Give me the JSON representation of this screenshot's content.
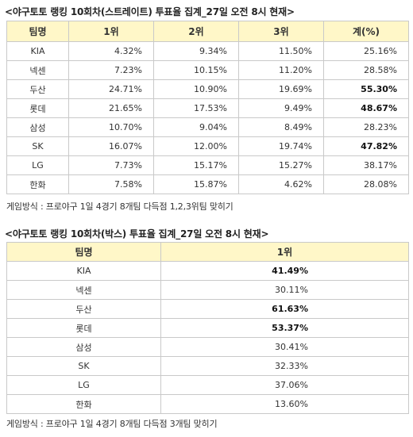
{
  "section1": {
    "title": "<야구토토 랭킹 10회차(스트레이트) 투표율 집계_27일 오전 8시 현재>",
    "headers": [
      "팀명",
      "1위",
      "2위",
      "3위",
      "계(%)"
    ],
    "rows": [
      {
        "team": "KIA",
        "r1": "4.32%",
        "r2": "9.34%",
        "r3": "11.50%",
        "total": "25.16%",
        "bold": false
      },
      {
        "team": "넥센",
        "r1": "7.23%",
        "r2": "10.15%",
        "r3": "11.20%",
        "total": "28.58%",
        "bold": false
      },
      {
        "team": "두산",
        "r1": "24.71%",
        "r2": "10.90%",
        "r3": "19.69%",
        "total": "55.30%",
        "bold": true
      },
      {
        "team": "롯데",
        "r1": "21.65%",
        "r2": "17.53%",
        "r3": "9.49%",
        "total": "48.67%",
        "bold": true
      },
      {
        "team": "삼성",
        "r1": "10.70%",
        "r2": "9.04%",
        "r3": "8.49%",
        "total": "28.23%",
        "bold": false
      },
      {
        "team": "SK",
        "r1": "16.07%",
        "r2": "12.00%",
        "r3": "19.74%",
        "total": "47.82%",
        "bold": true
      },
      {
        "team": "LG",
        "r1": "7.73%",
        "r2": "15.17%",
        "r3": "15.27%",
        "total": "38.17%",
        "bold": false
      },
      {
        "team": "한화",
        "r1": "7.58%",
        "r2": "15.87%",
        "r3": "4.62%",
        "total": "28.08%",
        "bold": false
      }
    ],
    "note": "게임방식 : 프로야구 1일 4경기 8개팀 다득점 1,2,3위팀 맞히기"
  },
  "section2": {
    "title": "<야구토토 랭킹 10회차(박스) 투표율 집계_27일 오전 8시 현재>",
    "headers": [
      "팀명",
      "1위"
    ],
    "rows": [
      {
        "team": "KIA",
        "r1": "41.49%",
        "bold": true
      },
      {
        "team": "넥센",
        "r1": "30.11%",
        "bold": false
      },
      {
        "team": "두산",
        "r1": "61.63%",
        "bold": true
      },
      {
        "team": "롯데",
        "r1": "53.37%",
        "bold": true
      },
      {
        "team": "삼성",
        "r1": "30.41%",
        "bold": false
      },
      {
        "team": "SK",
        "r1": "32.33%",
        "bold": false
      },
      {
        "team": "LG",
        "r1": "37.06%",
        "bold": false
      },
      {
        "team": "한화",
        "r1": "13.60%",
        "bold": false
      }
    ],
    "note": "게임방식 : 프로야구 1일 4경기 8개팀 다득점 3개팀 맞히기"
  }
}
